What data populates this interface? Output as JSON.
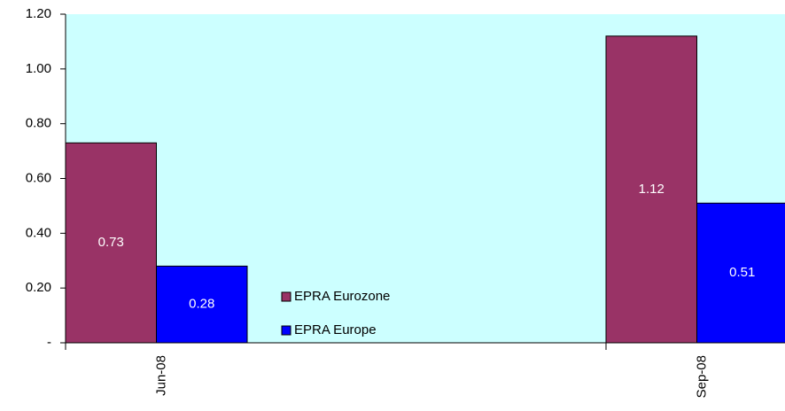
{
  "chart_data": {
    "type": "bar",
    "categories": [
      "Jun-08",
      "Sep-08"
    ],
    "series": [
      {
        "name": "EPRA Eurozone",
        "color": "#993366",
        "values": [
          0.73,
          1.12
        ]
      },
      {
        "name": "EPRA Europe",
        "color": "#0000ff",
        "values": [
          0.28,
          0.51
        ]
      }
    ],
    "ylim": [
      0,
      1.2
    ],
    "yticks": [
      {
        "value": 0,
        "label": "-"
      },
      {
        "value": 0.2,
        "label": "0.20"
      },
      {
        "value": 0.4,
        "label": "0.40"
      },
      {
        "value": 0.6,
        "label": "0.60"
      },
      {
        "value": 0.8,
        "label": "0.80"
      },
      {
        "value": 1,
        "label": "1.00"
      },
      {
        "value": 1.2,
        "label": "1.20"
      }
    ],
    "plot_background": "#ccffff"
  }
}
